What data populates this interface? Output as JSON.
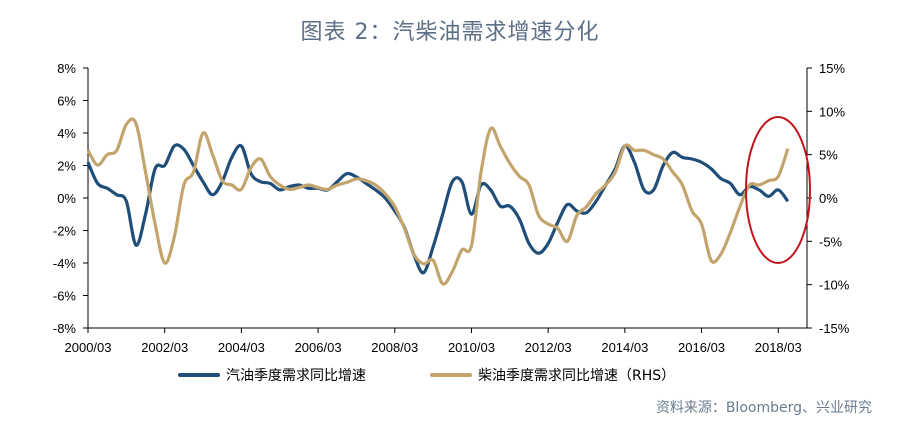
{
  "title": "图表 2：汽柴油需求增速分化",
  "source": "资料来源：Bloomberg、兴业研究",
  "colors": {
    "series1": "#1f4e79",
    "series2": "#c4a46d",
    "ellipse": "#c0151b",
    "title": "#5b6f87"
  },
  "chart_data": {
    "type": "line",
    "title": "图表 2：汽柴油需求增速分化",
    "legend_position": "bottom",
    "grid": false,
    "x_labels": [
      "2000/03",
      "2002/03",
      "2004/03",
      "2006/03",
      "2008/03",
      "2010/03",
      "2012/03",
      "2014/03",
      "2016/03",
      "2018/03"
    ],
    "x_range": [
      "2000-03",
      "2018-12"
    ],
    "y_left": {
      "range": [
        -8,
        8
      ],
      "ticks": [
        "8%",
        "6%",
        "4%",
        "2%",
        "0%",
        "-2%",
        "-4%",
        "-6%",
        "-8%"
      ]
    },
    "y_right": {
      "range": [
        -15,
        15
      ],
      "ticks": [
        "15%",
        "10%",
        "5%",
        "0%",
        "-5%",
        "-10%",
        "-15%"
      ]
    },
    "annotation": "red ellipse highlighting 2017-2018 divergence",
    "series": [
      {
        "name": "汽油季度需求同比增速",
        "axis": "left",
        "points": [
          [
            "2000-03",
            2.2
          ],
          [
            "2000-06",
            0.9
          ],
          [
            "2000-09",
            0.6
          ],
          [
            "2000-12",
            0.2
          ],
          [
            "2001-03",
            -0.2
          ],
          [
            "2001-06",
            -2.9
          ],
          [
            "2001-09",
            -1.0
          ],
          [
            "2001-12",
            1.8
          ],
          [
            "2002-03",
            2.0
          ],
          [
            "2002-06",
            3.2
          ],
          [
            "2002-09",
            3.0
          ],
          [
            "2002-12",
            2.0
          ],
          [
            "2003-03",
            1.0
          ],
          [
            "2003-06",
            0.2
          ],
          [
            "2003-09",
            1.0
          ],
          [
            "2003-12",
            2.5
          ],
          [
            "2004-03",
            3.2
          ],
          [
            "2004-06",
            1.5
          ],
          [
            "2004-09",
            1.0
          ],
          [
            "2004-12",
            0.9
          ],
          [
            "2005-03",
            0.5
          ],
          [
            "2005-06",
            0.7
          ],
          [
            "2005-09",
            0.8
          ],
          [
            "2005-12",
            0.6
          ],
          [
            "2006-03",
            0.6
          ],
          [
            "2006-06",
            0.5
          ],
          [
            "2006-09",
            1.0
          ],
          [
            "2006-12",
            1.5
          ],
          [
            "2007-03",
            1.3
          ],
          [
            "2007-06",
            0.9
          ],
          [
            "2007-09",
            0.5
          ],
          [
            "2007-12",
            0.0
          ],
          [
            "2008-03",
            -0.8
          ],
          [
            "2008-06",
            -1.8
          ],
          [
            "2008-09",
            -3.5
          ],
          [
            "2008-12",
            -4.6
          ],
          [
            "2009-03",
            -3.0
          ],
          [
            "2009-06",
            -1.0
          ],
          [
            "2009-09",
            1.0
          ],
          [
            "2009-12",
            1.0
          ],
          [
            "2010-03",
            -1.0
          ],
          [
            "2010-06",
            0.8
          ],
          [
            "2010-09",
            0.5
          ],
          [
            "2010-12",
            -0.5
          ],
          [
            "2011-03",
            -0.5
          ],
          [
            "2011-06",
            -1.3
          ],
          [
            "2011-09",
            -2.8
          ],
          [
            "2011-12",
            -3.4
          ],
          [
            "2012-03",
            -2.8
          ],
          [
            "2012-06",
            -1.5
          ],
          [
            "2012-09",
            -0.4
          ],
          [
            "2012-12",
            -0.8
          ],
          [
            "2013-03",
            -0.9
          ],
          [
            "2013-06",
            -0.2
          ],
          [
            "2013-09",
            0.8
          ],
          [
            "2013-12",
            1.8
          ],
          [
            "2014-03",
            3.2
          ],
          [
            "2014-06",
            2.2
          ],
          [
            "2014-09",
            0.5
          ],
          [
            "2014-12",
            0.5
          ],
          [
            "2015-03",
            2.0
          ],
          [
            "2015-06",
            2.8
          ],
          [
            "2015-09",
            2.5
          ],
          [
            "2015-12",
            2.4
          ],
          [
            "2016-03",
            2.2
          ],
          [
            "2016-06",
            1.8
          ],
          [
            "2016-09",
            1.2
          ],
          [
            "2016-12",
            0.9
          ],
          [
            "2017-03",
            0.2
          ],
          [
            "2017-06",
            0.7
          ],
          [
            "2017-09",
            0.5
          ],
          [
            "2017-12",
            0.1
          ],
          [
            "2018-03",
            0.5
          ],
          [
            "2018-06",
            -0.2
          ]
        ]
      },
      {
        "name": "柴油季度需求同比增速（RHS）",
        "axis": "right",
        "points": [
          [
            "2000-03",
            5.5
          ],
          [
            "2000-06",
            3.8
          ],
          [
            "2000-09",
            5.0
          ],
          [
            "2000-12",
            5.5
          ],
          [
            "2001-03",
            8.5
          ],
          [
            "2001-06",
            8.6
          ],
          [
            "2001-09",
            3.0
          ],
          [
            "2001-12",
            -3.0
          ],
          [
            "2002-03",
            -7.5
          ],
          [
            "2002-06",
            -4.5
          ],
          [
            "2002-09",
            1.5
          ],
          [
            "2002-12",
            3.0
          ],
          [
            "2003-03",
            7.5
          ],
          [
            "2003-06",
            5.0
          ],
          [
            "2003-09",
            2.0
          ],
          [
            "2003-12",
            1.5
          ],
          [
            "2004-03",
            1.0
          ],
          [
            "2004-06",
            3.5
          ],
          [
            "2004-09",
            4.5
          ],
          [
            "2004-12",
            2.5
          ],
          [
            "2005-03",
            1.5
          ],
          [
            "2005-06",
            1.0
          ],
          [
            "2005-09",
            1.2
          ],
          [
            "2005-12",
            1.5
          ],
          [
            "2006-03",
            1.2
          ],
          [
            "2006-06",
            1.0
          ],
          [
            "2006-09",
            1.5
          ],
          [
            "2006-12",
            1.8
          ],
          [
            "2007-03",
            2.2
          ],
          [
            "2007-06",
            2.0
          ],
          [
            "2007-09",
            1.5
          ],
          [
            "2007-12",
            0.5
          ],
          [
            "2008-03",
            -1.0
          ],
          [
            "2008-06",
            -3.5
          ],
          [
            "2008-09",
            -6.5
          ],
          [
            "2008-12",
            -7.6
          ],
          [
            "2009-03",
            -7.2
          ],
          [
            "2009-06",
            -9.9
          ],
          [
            "2009-09",
            -8.5
          ],
          [
            "2009-12",
            -6.0
          ],
          [
            "2010-03",
            -5.5
          ],
          [
            "2010-06",
            3.0
          ],
          [
            "2010-09",
            8.0
          ],
          [
            "2010-12",
            6.0
          ],
          [
            "2011-03",
            4.0
          ],
          [
            "2011-06",
            2.5
          ],
          [
            "2011-09",
            1.5
          ],
          [
            "2011-12",
            -2.0
          ],
          [
            "2012-03",
            -3.0
          ],
          [
            "2012-06",
            -3.5
          ],
          [
            "2012-09",
            -5.0
          ],
          [
            "2012-12",
            -2.0
          ],
          [
            "2013-03",
            -1.0
          ],
          [
            "2013-06",
            0.5
          ],
          [
            "2013-09",
            1.5
          ],
          [
            "2013-12",
            3.0
          ],
          [
            "2014-03",
            6.0
          ],
          [
            "2014-06",
            5.5
          ],
          [
            "2014-09",
            5.5
          ],
          [
            "2014-12",
            5.0
          ],
          [
            "2015-03",
            4.5
          ],
          [
            "2015-06",
            3.0
          ],
          [
            "2015-09",
            1.5
          ],
          [
            "2015-12",
            -1.5
          ],
          [
            "2016-03",
            -3.0
          ],
          [
            "2016-06",
            -7.2
          ],
          [
            "2016-09",
            -6.5
          ],
          [
            "2016-12",
            -4.0
          ],
          [
            "2017-03",
            -1.0
          ],
          [
            "2017-06",
            1.5
          ],
          [
            "2017-09",
            1.5
          ],
          [
            "2017-12",
            2.0
          ],
          [
            "2018-03",
            2.5
          ],
          [
            "2018-06",
            5.7
          ]
        ]
      }
    ]
  }
}
